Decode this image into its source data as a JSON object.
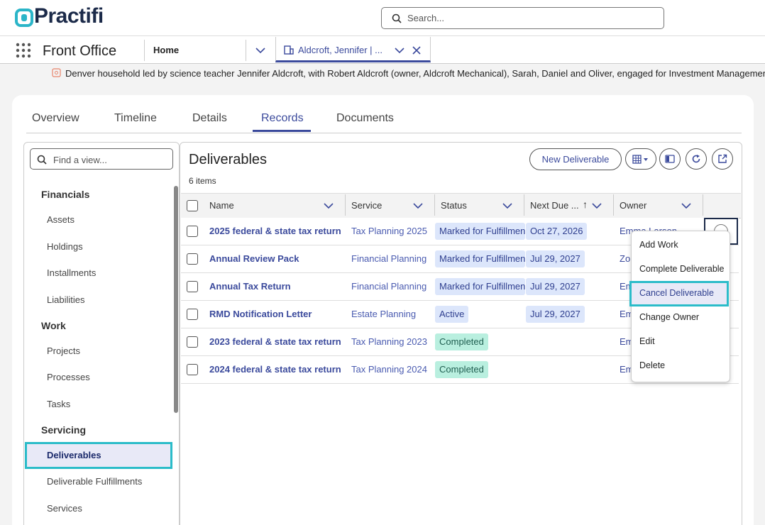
{
  "header": {
    "logo": "Practifi",
    "search_placeholder": "Search..."
  },
  "nav": {
    "app": "Front Office",
    "tabs": [
      "Home",
      "Aldcroft, Jennifer | ..."
    ]
  },
  "summary": "Denver household led by science teacher Jennifer Aldcroft, with Robert Aldcroft (owner, Aldcroft Mechanical), Sarah, Daniel and Oliver, engaged for Investment Management",
  "record_tabs": [
    "Overview",
    "Timeline",
    "Details",
    "Records",
    "Documents"
  ],
  "sidebar": {
    "search_placeholder": "Find a view...",
    "groups": [
      {
        "title": "Financials",
        "items": [
          "Assets",
          "Holdings",
          "Installments",
          "Liabilities"
        ]
      },
      {
        "title": "Work",
        "items": [
          "Projects",
          "Processes",
          "Tasks"
        ]
      },
      {
        "title": "Servicing",
        "items": [
          "Deliverables",
          "Deliverable Fulfillments",
          "Services"
        ]
      }
    ]
  },
  "list": {
    "title": "Deliverables",
    "count": "6 items",
    "new_button": "New Deliverable",
    "columns": [
      "Name",
      "Service",
      "Status",
      "Next Due ...",
      "Owner"
    ],
    "rows": [
      [
        "2025 federal & state tax return",
        "Tax Planning 2025",
        "Marked for Fulfillment",
        "Oct 27, 2026",
        "Emma Larson"
      ],
      [
        "Annual Review Pack",
        "Financial Planning",
        "Marked for Fulfillment",
        "Jul 29, 2027",
        "Zo"
      ],
      [
        "Annual Tax Return",
        "Financial Planning",
        "Marked for Fulfillment",
        "Jul 29, 2027",
        "Em"
      ],
      [
        "RMD Notification Letter",
        "Estate Planning",
        "Active",
        "Jul 29, 2027",
        "Em"
      ],
      [
        "2023 federal & state tax return",
        "Tax Planning 2023",
        "Completed",
        null,
        "Em"
      ],
      [
        "2024 federal & state tax return",
        "Tax Planning 2024",
        "Completed",
        null,
        "Em"
      ]
    ]
  },
  "menu": [
    "Add Work",
    "Complete Deliverable",
    "Cancel Deliverable",
    "Change Owner",
    "Edit",
    "Delete"
  ]
}
